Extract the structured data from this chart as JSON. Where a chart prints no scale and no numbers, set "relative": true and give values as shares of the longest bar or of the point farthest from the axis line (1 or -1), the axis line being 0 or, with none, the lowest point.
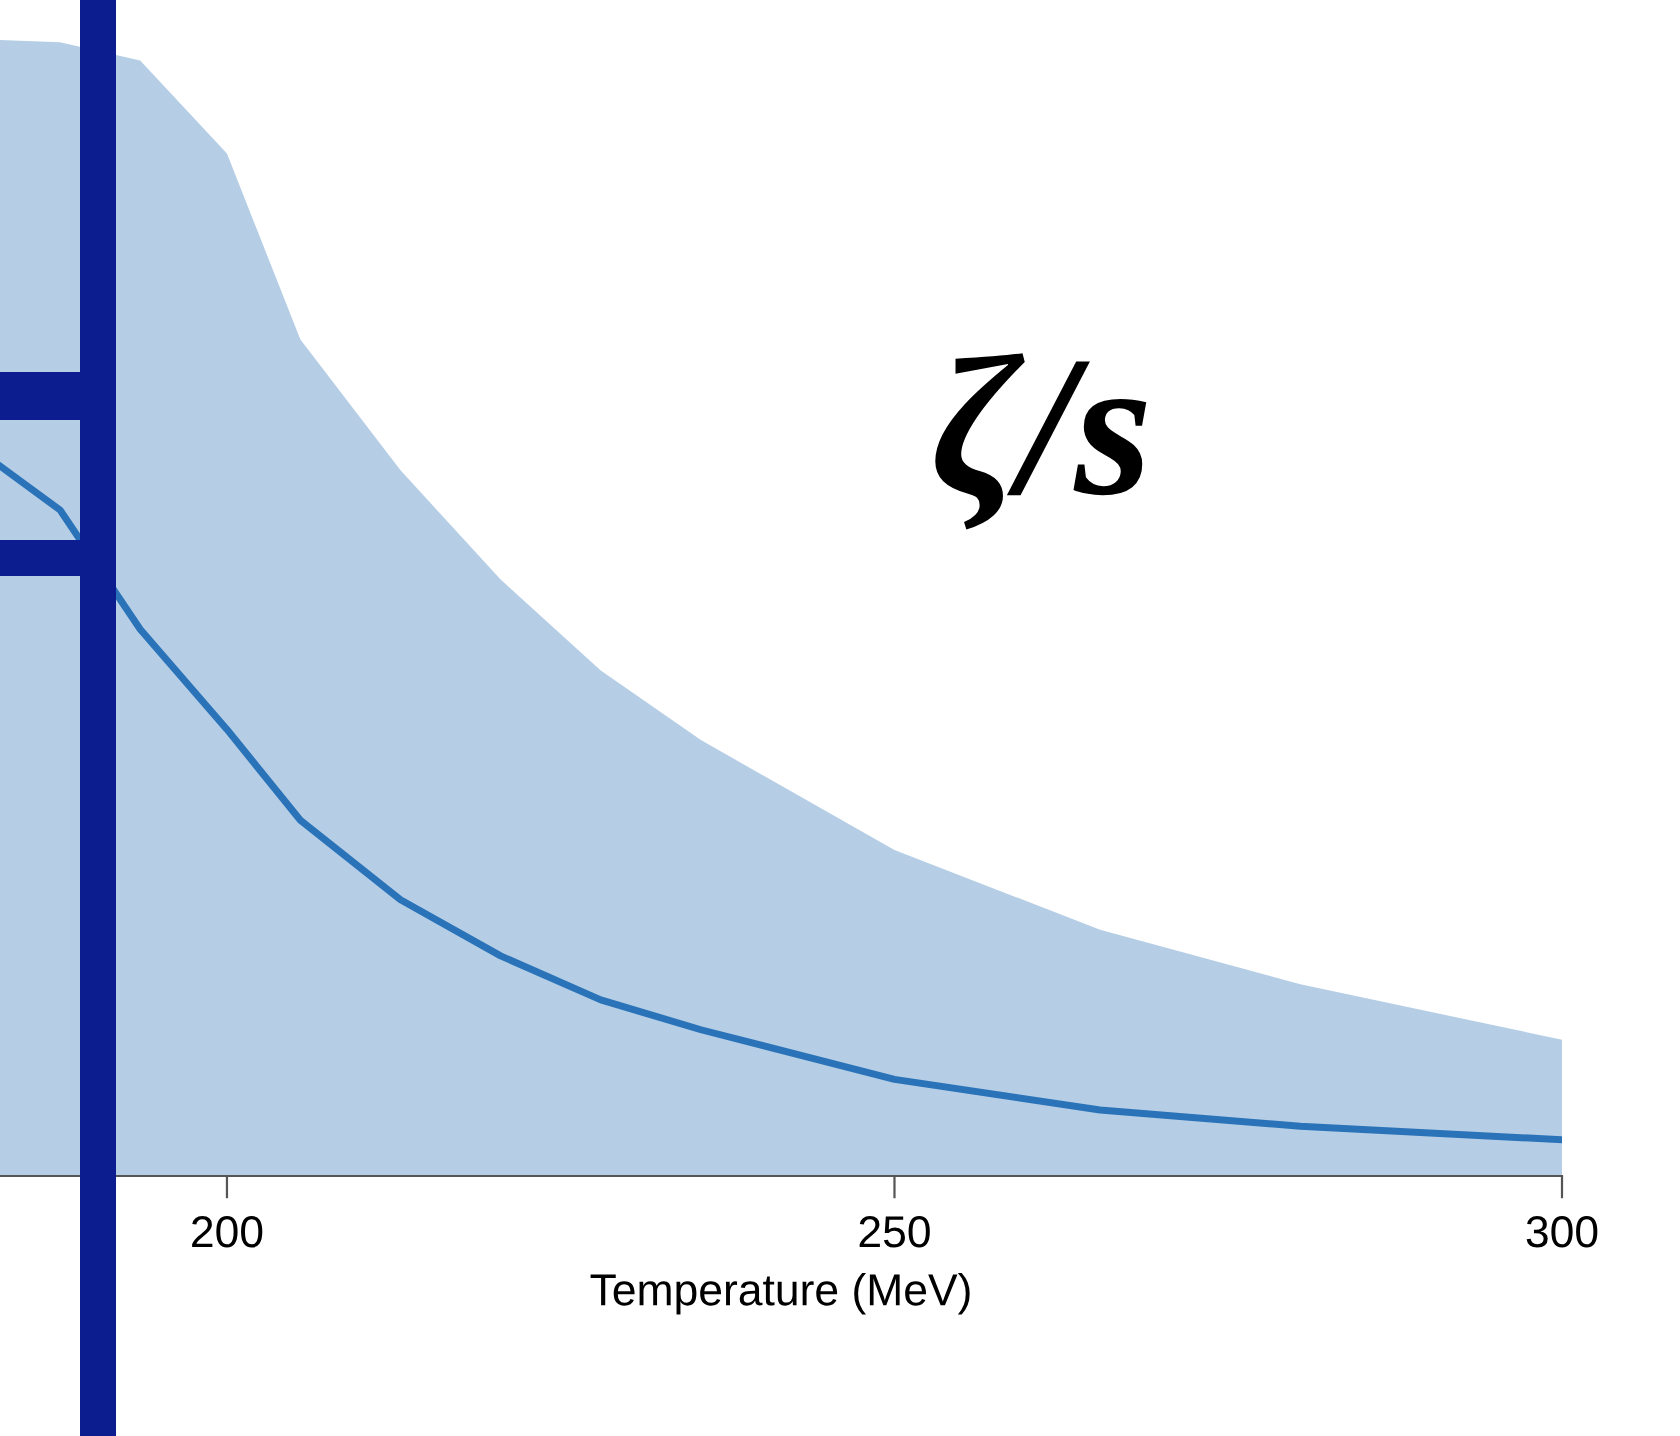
{
  "chart_data": {
    "type": "line",
    "relative": true,
    "xlabel": "Temperature (MeV)",
    "annotations": [
      "ζ/s"
    ],
    "xlim": [
      183,
      300
    ],
    "xticks": [
      200,
      250,
      300
    ],
    "tick_labels": "x",
    "grid": false,
    "marker": "none",
    "line_style": "solid",
    "series": [
      {
        "color": "#2b73b8",
        "x": [
          183,
          187.5,
          193.5,
          200,
          205.5,
          213,
          220.5,
          228,
          235.5,
          250,
          265.4,
          280.4,
          300
        ],
        "values": [
          1.0,
          0.938,
          0.77,
          0.629,
          0.501,
          0.389,
          0.31,
          0.248,
          0.206,
          0.136,
          0.093,
          0.07,
          0.051
        ],
        "lower": [
          0,
          0,
          0,
          0,
          0,
          0,
          0,
          0,
          0,
          0,
          0,
          0,
          0
        ],
        "upper": [
          1.6,
          1.597,
          1.571,
          1.44,
          1.178,
          0.994,
          0.84,
          0.712,
          0.614,
          0.459,
          0.347,
          0.27,
          0.192
        ]
      }
    ]
  }
}
